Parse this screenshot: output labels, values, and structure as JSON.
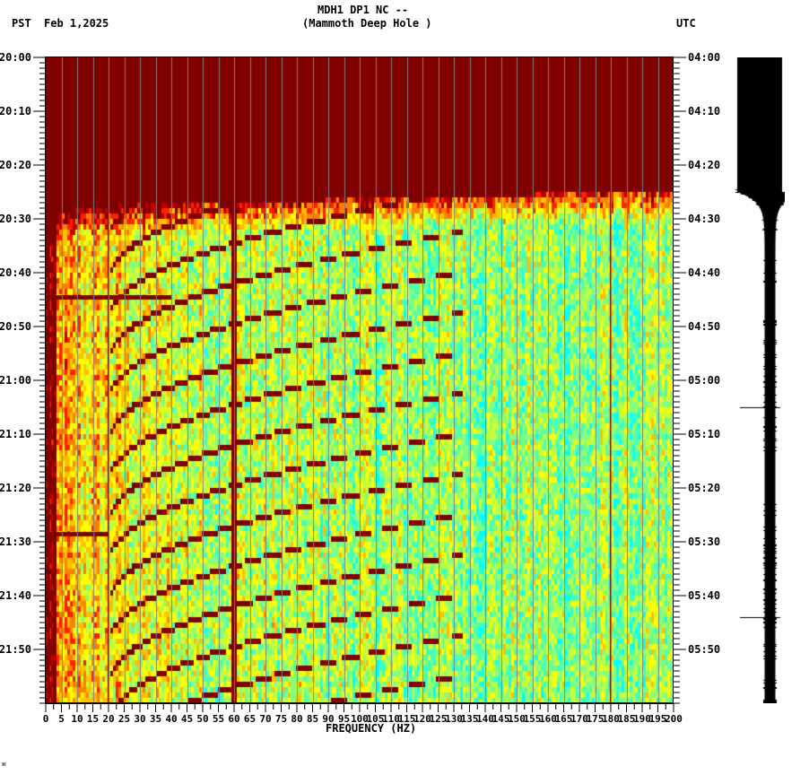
{
  "header": {
    "station_line": "MDH1 DP1 NC --",
    "location_line": "(Mammoth Deep Hole )",
    "left_timezone": "PST",
    "date": "Feb 1,2025",
    "right_timezone": "UTC"
  },
  "footer": {
    "x_axis_label": "FREQUENCY (HZ)",
    "corner_mark": "⌘"
  },
  "colors": {
    "saturated": "#800000",
    "grid_line": "#808080",
    "waveform": "#000000",
    "colormap": [
      "#00ffff",
      "#40ffc0",
      "#80ff80",
      "#c0ff40",
      "#ffff00",
      "#ffc000",
      "#ff8000",
      "#ff2000",
      "#c00000",
      "#800000"
    ]
  },
  "chart_data": {
    "type": "heatmap",
    "title": "MDH1 DP1 NC -- (Mammoth Deep Hole )",
    "subtitle": "Feb 1,2025",
    "xlabel": "FREQUENCY (HZ)",
    "ylabel_left": "PST",
    "ylabel_right": "UTC",
    "xlim": [
      0,
      200
    ],
    "x_ticks": [
      0,
      5,
      10,
      15,
      20,
      25,
      30,
      35,
      40,
      45,
      50,
      55,
      60,
      65,
      70,
      75,
      80,
      85,
      90,
      95,
      100,
      105,
      110,
      115,
      120,
      125,
      130,
      135,
      140,
      145,
      150,
      155,
      160,
      165,
      170,
      175,
      180,
      185,
      190,
      195,
      200
    ],
    "y_ticks_left": [
      "20:00",
      "20:10",
      "20:20",
      "20:30",
      "20:40",
      "20:50",
      "21:00",
      "21:10",
      "21:20",
      "21:30",
      "21:40",
      "21:50"
    ],
    "y_ticks_right": [
      "04:00",
      "04:10",
      "04:20",
      "04:30",
      "04:40",
      "04:50",
      "05:00",
      "05:10",
      "05:20",
      "05:30",
      "05:40",
      "05:50"
    ],
    "time_range_pst": [
      "20:00",
      "22:00"
    ],
    "grid": {
      "vertical_every_hz": 5
    },
    "features": {
      "saturated_until_minutes": {
        "at_0hz": 28,
        "at_200hz": 25
      },
      "persistent_lines_hz": [
        1,
        20,
        60,
        180
      ],
      "broadband_events_minutes": [
        44.5,
        88.5
      ],
      "sweep_arcs": "repeating downward-curving harmonic sweeps between 20 and 130 Hz, period approx 7.5 min"
    },
    "waveform": {
      "position": "right",
      "clipped_until_minutes": 25,
      "spikes_minutes": [
        65,
        104
      ]
    }
  }
}
